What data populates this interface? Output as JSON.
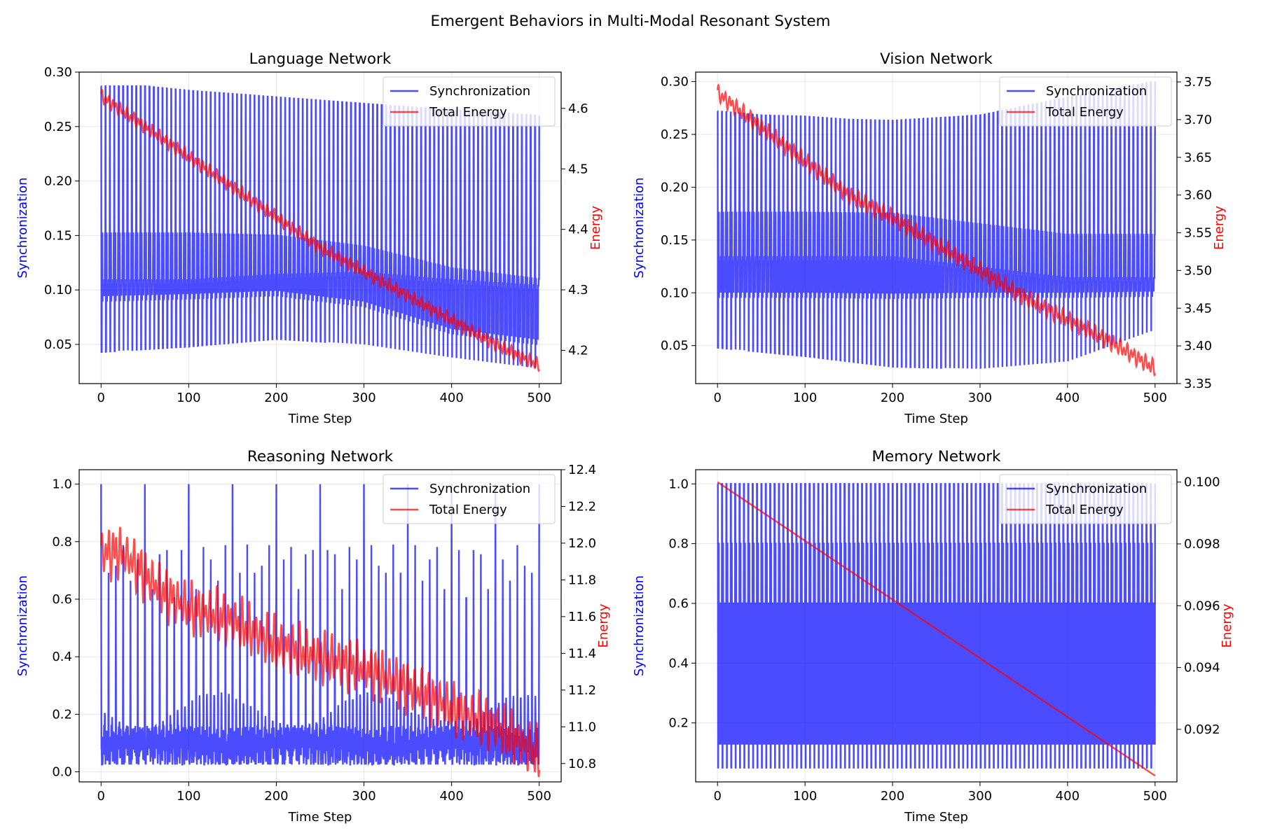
{
  "figure": {
    "suptitle": "Emergent Behaviors in Multi-Modal Resonant System"
  },
  "chart_data": [
    {
      "type": "line",
      "title": "Language Network",
      "xlabel": "Time Step",
      "ylabel": "Synchronization",
      "ylabel2": "Energy",
      "xlim": [
        -25,
        525
      ],
      "ylim": [
        0.014,
        0.3
      ],
      "ylim2": [
        4.145,
        4.66
      ],
      "xticks": [
        0,
        100,
        200,
        300,
        400,
        500
      ],
      "yticks": [
        0.05,
        0.1,
        0.15,
        0.2,
        0.25,
        0.3
      ],
      "yticklabels": [
        "0.05",
        "0.10",
        "0.15",
        "0.20",
        "0.25",
        "0.30"
      ],
      "yticks2": [
        4.2,
        4.3,
        4.4,
        4.5,
        4.6
      ],
      "yticklabels2": [
        "4.2",
        "4.3",
        "4.4",
        "4.5",
        "4.6"
      ],
      "grid": true,
      "legend_position": "upper right",
      "series": [
        {
          "name": "Synchronization",
          "axis": "left",
          "color": "#0000ff",
          "pattern": "Periodic spikes every ~5 steps; baseline ~0.10, peaks up to envelope, troughs down to lower envelope",
          "period": 5,
          "upper_envelope": {
            "x": [
              0,
              50,
              100,
              200,
              300,
              400,
              500
            ],
            "y": [
              0.287,
              0.287,
              0.283,
              0.277,
              0.271,
              0.265,
              0.26
            ]
          },
          "lower_envelope": {
            "x": [
              0,
              100,
              200,
              300,
              400,
              500
            ],
            "y": [
              0.043,
              0.048,
              0.055,
              0.05,
              0.038,
              0.028
            ]
          },
          "mid_upper": {
            "x": [
              0,
              100,
              200,
              300,
              400,
              500
            ],
            "y": [
              0.152,
              0.152,
              0.15,
              0.14,
              0.12,
              0.11
            ]
          },
          "mid_lower": {
            "x": [
              0,
              100,
              200,
              300,
              400,
              500
            ],
            "y": [
              0.09,
              0.092,
              0.095,
              0.085,
              0.06,
              0.05
            ]
          },
          "base": {
            "x": [
              0,
              100,
              200,
              300,
              400,
              500
            ],
            "y": [
              0.105,
              0.105,
              0.11,
              0.112,
              0.105,
              0.1
            ]
          }
        },
        {
          "name": "Total Energy",
          "axis": "right",
          "color": "#ff0000",
          "x": [
            0,
            50,
            100,
            150,
            200,
            250,
            300,
            350,
            400,
            450,
            500
          ],
          "y": [
            4.62,
            4.57,
            4.52,
            4.47,
            4.42,
            4.37,
            4.33,
            4.29,
            4.25,
            4.21,
            4.175
          ],
          "oscillation_amplitude": 0.012
        }
      ]
    },
    {
      "type": "line",
      "title": "Vision Network",
      "xlabel": "Time Step",
      "ylabel": "Synchronization",
      "ylabel2": "Energy",
      "xlim": [
        -25,
        525
      ],
      "ylim": [
        0.014,
        0.309
      ],
      "ylim2": [
        3.35,
        3.763
      ],
      "xticks": [
        0,
        100,
        200,
        300,
        400,
        500
      ],
      "yticks": [
        0.05,
        0.1,
        0.15,
        0.2,
        0.25,
        0.3
      ],
      "yticklabels": [
        "0.05",
        "0.10",
        "0.15",
        "0.20",
        "0.25",
        "0.30"
      ],
      "yticks2": [
        3.35,
        3.4,
        3.45,
        3.5,
        3.55,
        3.6,
        3.65,
        3.7,
        3.75
      ],
      "yticklabels2": [
        "3.35",
        "3.40",
        "3.45",
        "3.50",
        "3.55",
        "3.60",
        "3.65",
        "3.70",
        "3.75"
      ],
      "grid": true,
      "legend_position": "upper right",
      "series": [
        {
          "name": "Synchronization",
          "axis": "left",
          "color": "#0000ff",
          "pattern": "Periodic spikes every ~5 steps between upper envelope and lower envelope with mid plateau ~0.155",
          "period": 5,
          "upper_envelope": {
            "x": [
              0,
              50,
              100,
              150,
              200,
              300,
              400,
              500
            ],
            "y": [
              0.272,
              0.268,
              0.267,
              0.264,
              0.263,
              0.268,
              0.285,
              0.3
            ]
          },
          "lower_envelope": {
            "x": [
              0,
              100,
              200,
              300,
              400,
              500
            ],
            "y": [
              0.048,
              0.04,
              0.03,
              0.028,
              0.035,
              0.065
            ]
          },
          "mid_upper": {
            "x": [
              0,
              100,
              200,
              300,
              400,
              500
            ],
            "y": [
              0.176,
              0.176,
              0.175,
              0.165,
              0.155,
              0.155
            ]
          },
          "mid_lower": {
            "x": [
              0,
              100,
              200,
              300,
              400,
              500
            ],
            "y": [
              0.096,
              0.096,
              0.095,
              0.096,
              0.096,
              0.097
            ]
          },
          "base": {
            "x": [
              0,
              100,
              200,
              300,
              400,
              500
            ],
            "y": [
              0.13,
              0.13,
              0.13,
              0.12,
              0.11,
              0.11
            ]
          }
        },
        {
          "name": "Total Energy",
          "axis": "right",
          "color": "#ff0000",
          "x": [
            0,
            50,
            100,
            150,
            200,
            250,
            300,
            350,
            400,
            450,
            500
          ],
          "y": [
            3.735,
            3.69,
            3.645,
            3.6,
            3.57,
            3.535,
            3.5,
            3.465,
            3.435,
            3.405,
            3.37
          ],
          "oscillation_amplitude": 0.012
        }
      ]
    },
    {
      "type": "line",
      "title": "Reasoning Network",
      "xlabel": "Time Step",
      "ylabel": "Synchronization",
      "ylabel2": "Energy",
      "xlim": [
        -25,
        525
      ],
      "ylim": [
        -0.035,
        1.05
      ],
      "ylim2": [
        10.7,
        12.4
      ],
      "xticks": [
        0,
        100,
        200,
        300,
        400,
        500
      ],
      "yticks": [
        0.0,
        0.2,
        0.4,
        0.6,
        0.8,
        1.0
      ],
      "yticklabels": [
        "0.0",
        "0.2",
        "0.4",
        "0.6",
        "0.8",
        "1.0"
      ],
      "yticks2": [
        10.8,
        11.0,
        11.2,
        11.4,
        11.6,
        11.8,
        12.0,
        12.2,
        12.4
      ],
      "yticklabels2": [
        "10.8",
        "11.0",
        "11.2",
        "11.4",
        "11.6",
        "11.8",
        "12.0",
        "12.2",
        "12.4"
      ],
      "grid": true,
      "legend_position": "upper right",
      "series": [
        {
          "name": "Synchronization",
          "axis": "left",
          "color": "#0000ff",
          "pattern": "Spikes to 0.79 every ~8 steps, to 1.0 every 50 steps; baseline 0.05–0.15",
          "period": 8.33,
          "big_spike_period": 50,
          "spike_height": 0.79,
          "big_spike_height": 1.0,
          "base": {
            "x": [
              0,
              500
            ],
            "y": [
              0.09,
              0.09
            ]
          },
          "lower_envelope": {
            "x": [
              0,
              500
            ],
            "y": [
              0.03,
              0.03
            ]
          }
        },
        {
          "name": "Total Energy",
          "axis": "right",
          "color": "#ff0000",
          "x": [
            0,
            25,
            50,
            75,
            100,
            150,
            200,
            250,
            300,
            350,
            400,
            450,
            500
          ],
          "y": [
            11.95,
            11.95,
            11.83,
            11.72,
            11.65,
            11.58,
            11.45,
            11.38,
            11.32,
            11.22,
            11.1,
            11.0,
            10.85
          ],
          "oscillation_amplitude": 0.13
        }
      ]
    },
    {
      "type": "line",
      "title": "Memory Network",
      "xlabel": "Time Step",
      "ylabel": "Synchronization",
      "ylabel2": "Energy",
      "xlim": [
        -25,
        525
      ],
      "ylim": [
        0.0025,
        1.0475
      ],
      "ylim2": [
        0.0903,
        0.1004
      ],
      "xticks": [
        0,
        100,
        200,
        300,
        400,
        500
      ],
      "yticks": [
        0.2,
        0.4,
        0.6,
        0.8,
        1.0
      ],
      "yticklabels": [
        "0.2",
        "0.4",
        "0.6",
        "0.8",
        "1.0"
      ],
      "yticks2": [
        0.092,
        0.094,
        0.096,
        0.098,
        0.1
      ],
      "yticklabels2": [
        "0.092",
        "0.094",
        "0.096",
        "0.098",
        "0.100"
      ],
      "grid": true,
      "legend_position": "upper right",
      "series": [
        {
          "name": "Synchronization",
          "axis": "left",
          "color": "#0000ff",
          "pattern": "Dense oscillation: 0.13–0.60 band filled, spikes to 0.80 and 1.0 every ~5 steps, minima 0.05",
          "period": 5,
          "levels": [
            0.05,
            0.13,
            0.6,
            0.8,
            1.0
          ]
        },
        {
          "name": "Total Energy",
          "axis": "right",
          "color": "#ff0000",
          "x": [
            0,
            500
          ],
          "y": [
            0.1,
            0.0905
          ],
          "oscillation_amplitude": 0
        }
      ]
    }
  ]
}
